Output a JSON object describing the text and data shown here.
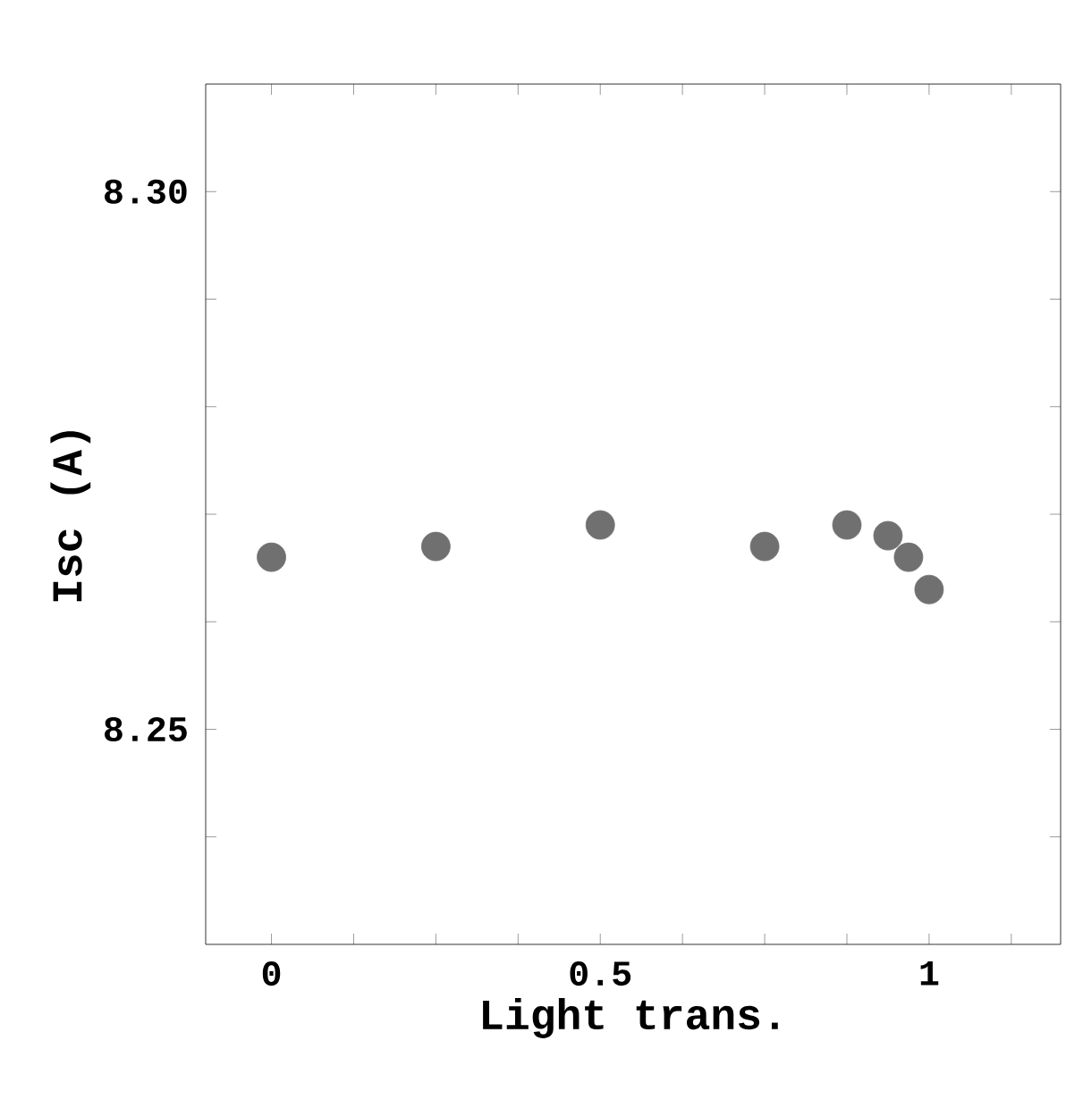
{
  "chart_data": {
    "type": "scatter",
    "xlabel": "Light trans.",
    "ylabel": "Isc (A)",
    "x": [
      0,
      0.25,
      0.5,
      0.75,
      0.875,
      0.9375,
      0.96875,
      1
    ],
    "values": [
      8.266,
      8.267,
      8.269,
      8.267,
      8.269,
      8.268,
      8.266,
      8.263
    ],
    "color": "#707070",
    "marker": "circle",
    "xlim": [
      -0.1,
      1.2
    ],
    "ylim": [
      8.23,
      8.31
    ],
    "xticks": [
      0,
      {
        "value": 0.125,
        "label": null
      },
      {
        "value": 0.25,
        "label": null
      },
      {
        "value": 0.375,
        "label": null
      },
      0.5,
      {
        "value": 0.625,
        "label": null
      },
      {
        "value": 0.75,
        "label": null
      },
      {
        "value": 0.875,
        "label": null
      },
      1,
      {
        "value": 1.125,
        "label": null
      }
    ],
    "yticks": [
      {
        "value": 8.24,
        "label": null
      },
      {
        "value": 8.25,
        "label": "8.25"
      },
      {
        "value": 8.26,
        "label": null
      },
      {
        "value": 8.27,
        "label": null
      },
      {
        "value": 8.28,
        "label": null
      },
      {
        "value": 8.29,
        "label": null
      },
      {
        "value": 8.3,
        "label": "8.30"
      }
    ],
    "grid": false
  }
}
